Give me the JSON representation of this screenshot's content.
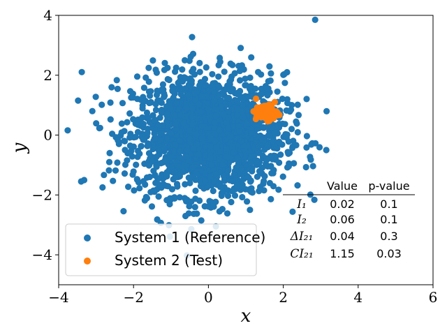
{
  "chart_data": {
    "type": "scatter",
    "title": "",
    "xlabel": "x",
    "ylabel": "y",
    "xlim": [
      -4,
      6
    ],
    "ylim": [
      -5,
      4
    ],
    "xticks": [
      -4,
      -2,
      0,
      2,
      4,
      6
    ],
    "yticks": [
      -4,
      -2,
      0,
      2,
      4
    ],
    "xtick_labels": [
      "−4",
      "−2",
      "0",
      "2",
      "4",
      "6"
    ],
    "ytick_labels": [
      "−4",
      "−2",
      "0",
      "2",
      "4"
    ],
    "grid": false,
    "legend_position": "lower-left",
    "series": [
      {
        "name": "System 1 (Reference)",
        "color": "#1f77b4",
        "distribution": {
          "kind": "bivariate-normal",
          "mean": [
            0,
            0
          ],
          "std": [
            1,
            1
          ],
          "n": 2000
        },
        "outliers": [
          [
            2.85,
            3.85
          ],
          [
            -3.4,
            -1.55
          ],
          [
            0.2,
            -3.05
          ],
          [
            3.15,
            -0.5
          ],
          [
            -3.1,
            0.8
          ],
          [
            2.1,
            2.1
          ]
        ]
      },
      {
        "name": "System 2 (Test)",
        "color": "#ff7f0e",
        "distribution": {
          "kind": "bivariate-normal",
          "mean": [
            1.55,
            0.75
          ],
          "std": [
            0.14,
            0.13
          ],
          "n": 120
        }
      }
    ],
    "table": {
      "headers": [
        "",
        "Value",
        "p-value"
      ],
      "rows": [
        {
          "label": "I₁",
          "value": "0.02",
          "p": "0.1"
        },
        {
          "label": "I₂",
          "value": "0.06",
          "p": "0.1"
        },
        {
          "label": "ΔI₂₁",
          "value": "0.04",
          "p": "0.3"
        },
        {
          "label": "CI₂₁",
          "value": "1.15",
          "p": "0.03"
        }
      ]
    }
  }
}
